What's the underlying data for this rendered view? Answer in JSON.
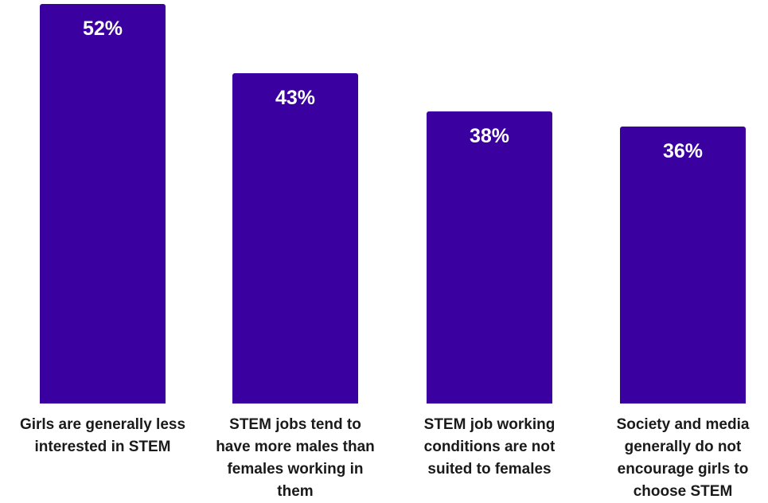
{
  "chart_data": {
    "type": "bar",
    "categories": [
      "Girls are generally less\ninterested in STEM",
      "STEM jobs tend to\nhave more males than\nfemales working in\nthem",
      "STEM job working\nconditions are not\nsuited to females",
      "Society and media\ngenerally do not\nencourage girls to\nchoose STEM"
    ],
    "values": [
      52,
      43,
      38,
      36
    ],
    "value_labels": [
      "52%",
      "43%",
      "38%",
      "36%"
    ],
    "ylim": [
      0,
      52
    ],
    "grid": false,
    "legend": "none",
    "bar_color": "#3a00a0",
    "value_label_color": "#ffffff"
  }
}
